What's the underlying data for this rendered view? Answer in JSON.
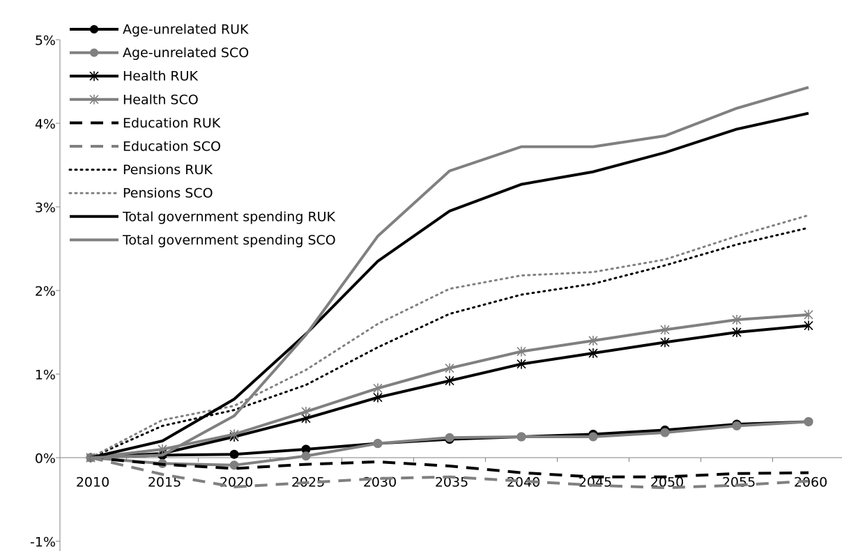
{
  "chart_data": {
    "type": "line",
    "categories": [
      "2010",
      "2015",
      "2020",
      "2025",
      "2030",
      "2035",
      "2040",
      "2045",
      "2050",
      "2055",
      "2060"
    ],
    "ylim": [
      -1,
      5
    ],
    "yticks": [
      {
        "value": -1,
        "label": "-1%"
      },
      {
        "value": 0,
        "label": "0%"
      },
      {
        "value": 1,
        "label": "1%"
      },
      {
        "value": 2,
        "label": "2%"
      },
      {
        "value": 3,
        "label": "3%"
      },
      {
        "value": 4,
        "label": "4%"
      },
      {
        "value": 5,
        "label": "5%"
      }
    ],
    "legend": "top-left",
    "series": [
      {
        "name": "Age-unrelated RUK",
        "color": "#000000",
        "dash": "solid",
        "marker": "circle",
        "values": [
          0,
          0.03,
          0.04,
          0.1,
          0.17,
          0.22,
          0.25,
          0.28,
          0.33,
          0.4,
          0.43
        ]
      },
      {
        "name": "Age-unrelated SCO",
        "color": "#808080",
        "dash": "solid",
        "marker": "circle",
        "values": [
          0,
          -0.07,
          -0.09,
          0.02,
          0.17,
          0.24,
          0.25,
          0.25,
          0.3,
          0.38,
          0.43
        ]
      },
      {
        "name": "Health RUK",
        "color": "#000000",
        "dash": "solid",
        "marker": "star",
        "values": [
          0,
          0.05,
          0.25,
          0.47,
          0.72,
          0.92,
          1.12,
          1.25,
          1.38,
          1.5,
          1.58
        ]
      },
      {
        "name": "Health SCO",
        "color": "#808080",
        "dash": "solid",
        "marker": "star",
        "values": [
          0,
          0.1,
          0.28,
          0.55,
          0.83,
          1.07,
          1.27,
          1.4,
          1.53,
          1.65,
          1.71
        ]
      },
      {
        "name": "Education RUK",
        "color": "#000000",
        "dash": "dash",
        "marker": "none",
        "values": [
          0,
          -0.08,
          -0.13,
          -0.08,
          -0.05,
          -0.1,
          -0.18,
          -0.23,
          -0.23,
          -0.19,
          -0.18
        ]
      },
      {
        "name": "Education SCO",
        "color": "#808080",
        "dash": "dash",
        "marker": "none",
        "values": [
          0,
          -0.2,
          -0.35,
          -0.3,
          -0.25,
          -0.23,
          -0.28,
          -0.33,
          -0.36,
          -0.33,
          -0.28
        ]
      },
      {
        "name": "Pensions RUK",
        "color": "#000000",
        "dash": "dot",
        "marker": "none",
        "values": [
          0,
          0.38,
          0.57,
          0.87,
          1.32,
          1.72,
          1.95,
          2.08,
          2.3,
          2.55,
          2.75
        ]
      },
      {
        "name": "Pensions SCO",
        "color": "#808080",
        "dash": "dot",
        "marker": "none",
        "values": [
          0,
          0.45,
          0.62,
          1.05,
          1.6,
          2.02,
          2.18,
          2.22,
          2.37,
          2.65,
          2.9
        ]
      },
      {
        "name": "Total government spending RUK",
        "color": "#000000",
        "dash": "solid",
        "marker": "none",
        "values": [
          0,
          0.2,
          0.7,
          1.48,
          2.35,
          2.95,
          3.27,
          3.42,
          3.65,
          3.93,
          4.12
        ]
      },
      {
        "name": "Total government spending SCO",
        "color": "#808080",
        "dash": "solid",
        "marker": "none",
        "values": [
          0,
          0.03,
          0.5,
          1.47,
          2.65,
          3.43,
          3.72,
          3.72,
          3.85,
          4.18,
          4.43
        ]
      }
    ]
  }
}
